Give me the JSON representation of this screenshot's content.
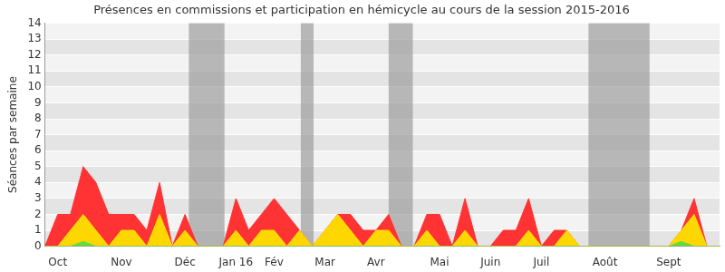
{
  "chart_data": {
    "type": "area",
    "title": "Présences en commissions et participation en hémicycle au cours de la session 2015-2016",
    "y_label": "Séances par semaine",
    "stacked": true,
    "grid": true,
    "categories": [
      null,
      "Oct",
      null,
      null,
      null,
      null,
      "Nov",
      null,
      null,
      null,
      null,
      "Déc",
      null,
      null,
      null,
      "Jan 16",
      null,
      null,
      "Fév",
      null,
      null,
      null,
      "Mar",
      null,
      null,
      null,
      "Avr",
      null,
      null,
      null,
      null,
      "Mai",
      null,
      null,
      null,
      "Juin",
      null,
      null,
      null,
      "Juil",
      null,
      null,
      null,
      null,
      "Août",
      null,
      null,
      null,
      null,
      "Sept",
      null,
      null,
      null,
      null
    ],
    "series": [
      {
        "color": "#66dd33",
        "values": [
          0,
          0,
          0,
          0.3,
          0,
          0,
          0,
          0,
          0,
          0,
          0,
          0,
          0,
          0,
          0,
          0,
          0,
          0,
          0,
          0,
          0,
          0,
          0,
          0,
          0,
          0,
          0,
          0,
          0,
          0,
          0,
          0,
          0,
          0,
          0,
          0,
          0,
          0,
          0,
          0,
          0,
          0,
          0,
          0,
          0,
          0,
          0,
          0,
          0,
          0,
          0.3,
          0,
          0,
          0
        ]
      },
      {
        "color": "#ffd700",
        "values": [
          0,
          0,
          1,
          1.7,
          1,
          0,
          1,
          1,
          0,
          2,
          0,
          1,
          0,
          0,
          0,
          1,
          0,
          1,
          1,
          0,
          1,
          0,
          1,
          2,
          1,
          0,
          1,
          1,
          0,
          0,
          1,
          0,
          0,
          1,
          0,
          0,
          0,
          0,
          1,
          0,
          0,
          1,
          0,
          0,
          0,
          0,
          0,
          0,
          0,
          0,
          0.7,
          2,
          0,
          0
        ]
      },
      {
        "color": "#ff3333",
        "values": [
          0,
          2,
          1,
          3,
          3,
          2,
          1,
          1,
          1,
          2,
          0,
          1,
          0,
          0,
          0,
          2,
          1,
          1,
          2,
          2,
          0,
          0,
          0,
          0,
          1,
          1,
          0,
          1,
          0,
          0,
          1,
          2,
          0,
          2,
          0,
          0,
          1,
          1,
          2,
          0,
          1,
          0,
          0,
          0,
          0,
          0,
          0,
          0,
          0,
          0,
          0,
          1,
          0,
          0
        ]
      }
    ],
    "shaded_periods": [
      [
        11.3,
        14.1
      ],
      [
        20.1,
        21.1
      ],
      [
        27,
        28.9
      ],
      [
        42.7,
        47.5
      ]
    ],
    "ylim": [
      0,
      14
    ],
    "yticks": [
      0,
      1,
      2,
      3,
      4,
      5,
      6,
      7,
      8,
      9,
      10,
      11,
      12,
      13,
      14
    ]
  }
}
